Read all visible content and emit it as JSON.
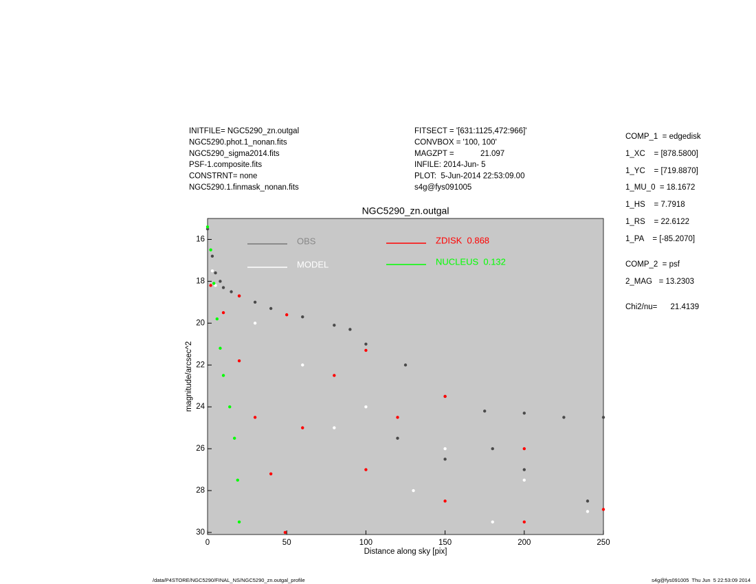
{
  "header": {
    "left": [
      "INITFILE= NGC5290_zn.outgal",
      "NGC5290.phot.1_nonan.fits",
      "NGC5290_sigma2014.fits",
      "PSF-1.composite.fits",
      "CONSTRNT= none",
      "NGC5290.1.finmask_nonan.fits"
    ],
    "middle": [
      "FITSECT = '[631:1125,472:966]'",
      "CONVBOX = '100, 100'",
      "MAGZPT =            21.097",
      "INFILE: 2014-Jun- 5",
      "PLOT:  5-Jun-2014 22:53:09.00",
      "s4g@fys091005"
    ],
    "right": [
      "COMP_1  = edgedisk",
      "1_XC    = [878.5800]",
      "1_YC    = [719.8870]",
      "1_MU_0  = 18.1672",
      "1_HS    = 7.7918",
      "1_RS    = 22.6122",
      "1_PA    = [-85.2070]",
      "COMP_2  = psf",
      "2_MAG   = 13.2303",
      "Chi2/nu=      21.4139"
    ]
  },
  "footer": {
    "left": "/data/P4STORE/NGC5290/FINAL_NS/NGC5290_zn.outgal_profile",
    "right": "s4g@fys091005  Thu Jun  5 22:53:09 2014"
  },
  "chart_data": {
    "type": "scatter",
    "title": "NGC5290_zn.outgal",
    "x_label": "Distance along sky [pix]",
    "y_label": "magnitude/arcsec^2",
    "xlim": [
      0,
      250
    ],
    "xticks": [
      0,
      50,
      100,
      150,
      200,
      250
    ],
    "ylim": [
      30.1,
      15
    ],
    "yticks": [
      16,
      18,
      20,
      22,
      24,
      26,
      28,
      30
    ],
    "series": [
      {
        "name": "OBS",
        "color": "#4a4a4a",
        "x": [
          0,
          3,
          5,
          8,
          10,
          15,
          20,
          30,
          40,
          60,
          80,
          90,
          100,
          125,
          150,
          175,
          200,
          225,
          250,
          150,
          200,
          240,
          120,
          180
        ],
        "values": [
          15.5,
          16.8,
          17.6,
          18.0,
          18.3,
          18.5,
          18.7,
          19.0,
          19.3,
          19.7,
          20.1,
          20.3,
          21.0,
          22.0,
          23.5,
          24.2,
          24.3,
          24.5,
          24.5,
          26.5,
          27.0,
          28.5,
          25.5,
          26.0
        ]
      },
      {
        "name": "MODEL",
        "color": "#ffffff",
        "x": [
          0,
          3,
          5,
          30,
          60,
          100,
          150,
          200,
          240,
          80,
          130,
          180
        ],
        "values": [
          15.4,
          17.5,
          18.2,
          20.0,
          22.0,
          24.0,
          26.0,
          27.5,
          29.0,
          25.0,
          28.0,
          29.5
        ]
      },
      {
        "name": "ZDISK  0.868",
        "color": "#ff0000",
        "x": [
          2,
          20,
          50,
          100,
          150,
          200,
          250,
          10,
          20,
          30,
          40,
          49,
          60,
          100,
          150,
          200,
          80,
          120
        ],
        "values": [
          18.2,
          18.7,
          19.6,
          21.3,
          23.5,
          26.0,
          28.9,
          19.5,
          21.8,
          24.5,
          27.2,
          30.0,
          25.0,
          27.0,
          28.5,
          29.5,
          22.5,
          24.5
        ]
      },
      {
        "name": "NUCLEUS  0.132",
        "color": "#00ff00",
        "x": [
          0,
          2,
          4,
          6,
          8,
          10,
          14,
          17,
          19,
          20
        ],
        "values": [
          15.4,
          16.5,
          18.1,
          19.8,
          21.2,
          22.5,
          24.0,
          25.5,
          27.5,
          29.5
        ]
      }
    ]
  }
}
